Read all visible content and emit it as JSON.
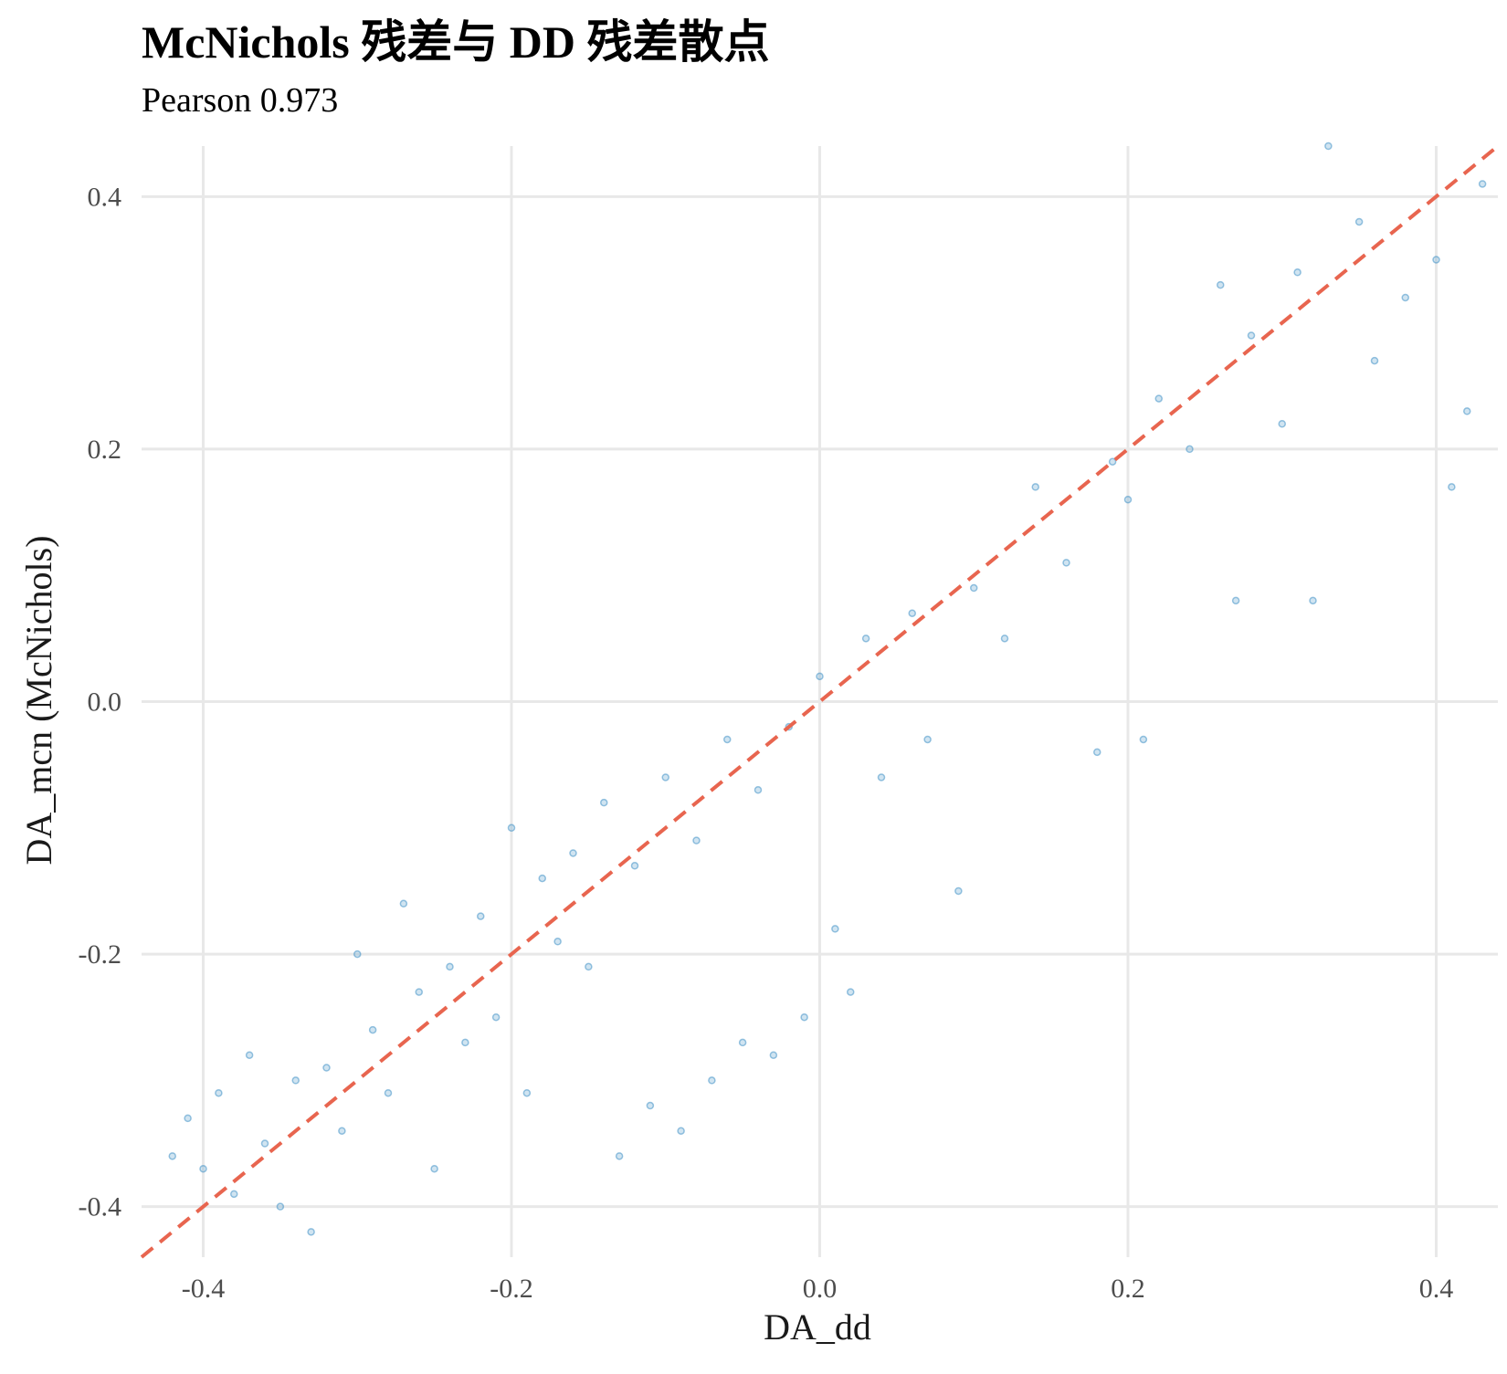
{
  "colors": {
    "point": "#4292c6",
    "reference_line": "#e8654f",
    "grid": "#e8e8e8",
    "title": "#000000",
    "tick": "#4d4d4d",
    "axis_title": "#1a1a1a"
  },
  "chart_data": {
    "type": "scatter",
    "title": "McNichols 残差与 DD 残差散点",
    "subtitle": "Pearson 0.973",
    "xlabel": "DA_dd",
    "ylabel": "DA_mcn (McNichols)",
    "xlim": [
      -0.44,
      0.44
    ],
    "ylim": [
      -0.44,
      0.44
    ],
    "x_ticks": [
      -0.4,
      -0.2,
      0.0,
      0.2,
      0.4
    ],
    "y_ticks": [
      -0.4,
      -0.2,
      0.0,
      0.2,
      0.4
    ],
    "x_tick_labels": [
      "-0.4",
      "-0.2",
      "0.0",
      "0.2",
      "0.4"
    ],
    "y_tick_labels": [
      "-0.4",
      "-0.2",
      "0.0",
      "0.2",
      "0.4"
    ],
    "grid": true,
    "reference_line": {
      "style": "dashed",
      "slope": 1,
      "intercept": 0
    },
    "series": [
      {
        "points": [
          [
            -0.42,
            -0.36
          ],
          [
            -0.41,
            -0.33
          ],
          [
            -0.4,
            -0.37
          ],
          [
            -0.39,
            -0.31
          ],
          [
            -0.38,
            -0.39
          ],
          [
            -0.37,
            -0.28
          ],
          [
            -0.36,
            -0.35
          ],
          [
            -0.35,
            -0.4
          ],
          [
            -0.34,
            -0.3
          ],
          [
            -0.33,
            -0.42
          ],
          [
            -0.32,
            -0.29
          ],
          [
            -0.31,
            -0.34
          ],
          [
            -0.3,
            -0.2
          ],
          [
            -0.29,
            -0.26
          ],
          [
            -0.28,
            -0.31
          ],
          [
            -0.27,
            -0.16
          ],
          [
            -0.26,
            -0.23
          ],
          [
            -0.25,
            -0.37
          ],
          [
            -0.24,
            -0.21
          ],
          [
            -0.23,
            -0.27
          ],
          [
            -0.22,
            -0.17
          ],
          [
            -0.21,
            -0.25
          ],
          [
            -0.2,
            -0.1
          ],
          [
            -0.19,
            -0.31
          ],
          [
            -0.18,
            -0.14
          ],
          [
            -0.17,
            -0.19
          ],
          [
            -0.16,
            -0.12
          ],
          [
            -0.15,
            -0.21
          ],
          [
            -0.14,
            -0.08
          ],
          [
            -0.13,
            -0.36
          ],
          [
            -0.12,
            -0.13
          ],
          [
            -0.11,
            -0.32
          ],
          [
            -0.1,
            -0.06
          ],
          [
            -0.09,
            -0.34
          ],
          [
            -0.08,
            -0.11
          ],
          [
            -0.07,
            -0.3
          ],
          [
            -0.06,
            -0.03
          ],
          [
            -0.05,
            -0.27
          ],
          [
            -0.04,
            -0.07
          ],
          [
            -0.03,
            -0.28
          ],
          [
            -0.02,
            -0.02
          ],
          [
            -0.01,
            -0.25
          ],
          [
            0.0,
            0.02
          ],
          [
            0.01,
            -0.18
          ],
          [
            0.02,
            -0.23
          ],
          [
            0.03,
            0.05
          ],
          [
            0.04,
            -0.06
          ],
          [
            0.06,
            0.07
          ],
          [
            0.07,
            -0.03
          ],
          [
            0.09,
            -0.15
          ],
          [
            0.1,
            0.09
          ],
          [
            0.12,
            0.05
          ],
          [
            0.14,
            0.17
          ],
          [
            0.16,
            0.11
          ],
          [
            0.18,
            -0.04
          ],
          [
            0.19,
            0.19
          ],
          [
            0.2,
            0.16
          ],
          [
            0.21,
            -0.03
          ],
          [
            0.22,
            0.24
          ],
          [
            0.24,
            0.2
          ],
          [
            0.26,
            0.33
          ],
          [
            0.27,
            0.08
          ],
          [
            0.28,
            0.29
          ],
          [
            0.3,
            0.22
          ],
          [
            0.31,
            0.34
          ],
          [
            0.32,
            0.08
          ],
          [
            0.33,
            0.44
          ],
          [
            0.35,
            0.38
          ],
          [
            0.36,
            0.27
          ],
          [
            0.38,
            0.32
          ],
          [
            0.4,
            0.35
          ],
          [
            0.41,
            0.17
          ],
          [
            0.42,
            0.23
          ],
          [
            0.43,
            0.41
          ]
        ]
      }
    ]
  }
}
